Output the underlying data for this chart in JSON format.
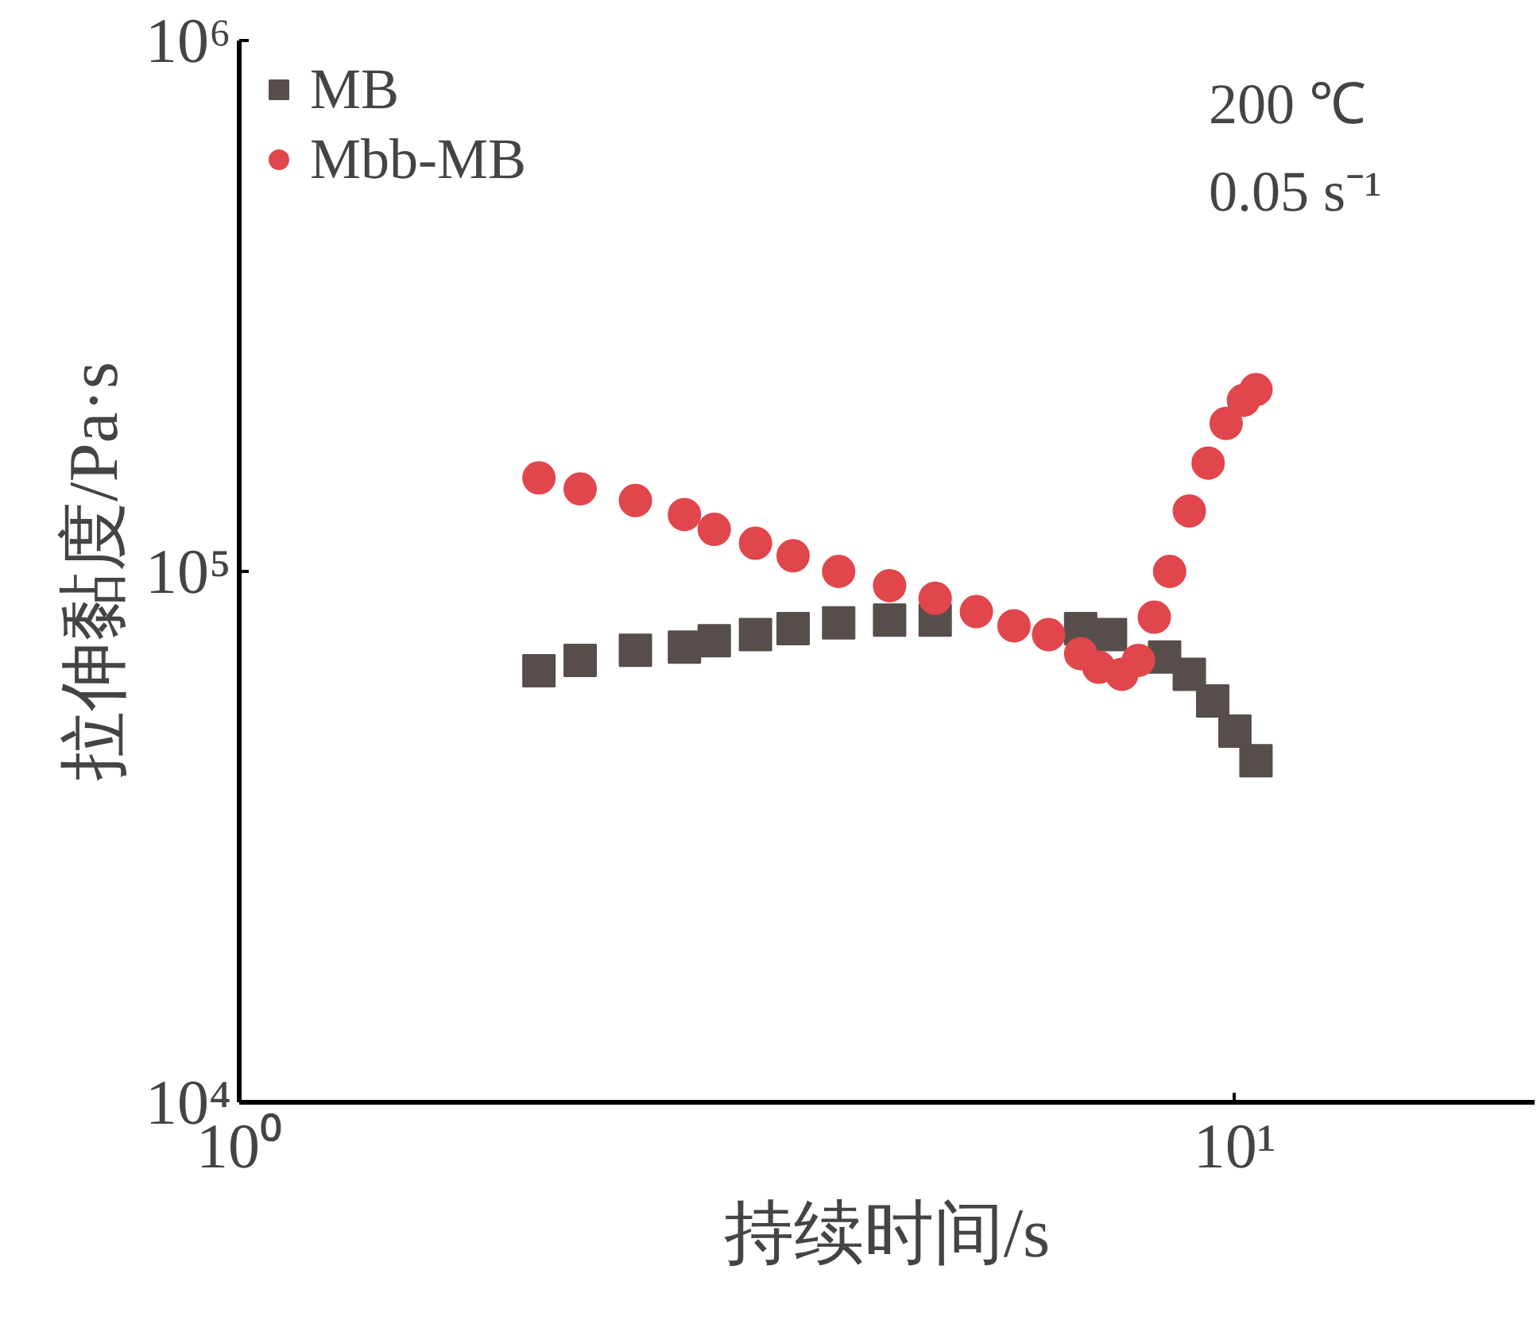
{
  "chart_data": {
    "type": "scatter",
    "xlabel": "持续时间/s",
    "ylabel": "拉伸黏度/Pa·s",
    "log": "xy",
    "xlim": [
      1,
      20
    ],
    "ylim": [
      10000,
      1000000
    ],
    "xticks": [
      {
        "value": 1,
        "label": "10⁰"
      },
      {
        "value": 10,
        "label": "10¹"
      }
    ],
    "yticks": [
      {
        "value": 10000,
        "label": "10⁴"
      },
      {
        "value": 100000,
        "label": "10⁵"
      },
      {
        "value": 1000000,
        "label": "10⁶"
      }
    ],
    "grid": false,
    "legend": "top left",
    "annotations": [
      "200 ℃",
      "0.05 s⁻¹"
    ],
    "series": [
      {
        "name": "MB",
        "color": "#574e4b",
        "marker": "square",
        "x": [
          2.0,
          2.2,
          2.5,
          2.8,
          3.0,
          3.3,
          3.6,
          4.0,
          4.5,
          5.0,
          5.5,
          6.0,
          6.5,
          7.0,
          7.5,
          8.0,
          8.5,
          9.0,
          9.5,
          10.0,
          10.5
        ],
        "values": [
          65000,
          68000,
          71000,
          72000,
          74000,
          76000,
          78000,
          80000,
          81000,
          81000,
          null,
          null,
          null,
          78000,
          76000,
          null,
          69000,
          64000,
          57000,
          50000,
          44000
        ]
      },
      {
        "name": "Mbb-MB",
        "color": "#e0464b",
        "marker": "circle",
        "x": [
          2.0,
          2.2,
          2.5,
          2.8,
          3.0,
          3.3,
          3.6,
          4.0,
          4.5,
          5.0,
          5.5,
          6.0,
          6.5,
          7.0,
          7.3,
          7.7,
          8.0,
          8.3,
          8.6,
          9.0,
          9.4,
          9.8,
          10.2,
          10.5
        ],
        "values": [
          150000,
          143000,
          136000,
          128000,
          120000,
          113000,
          107000,
          100000,
          94000,
          89000,
          84000,
          79000,
          76000,
          70000,
          66000,
          64000,
          68000,
          82000,
          100000,
          130000,
          160000,
          190000,
          210000,
          220000
        ]
      }
    ]
  }
}
